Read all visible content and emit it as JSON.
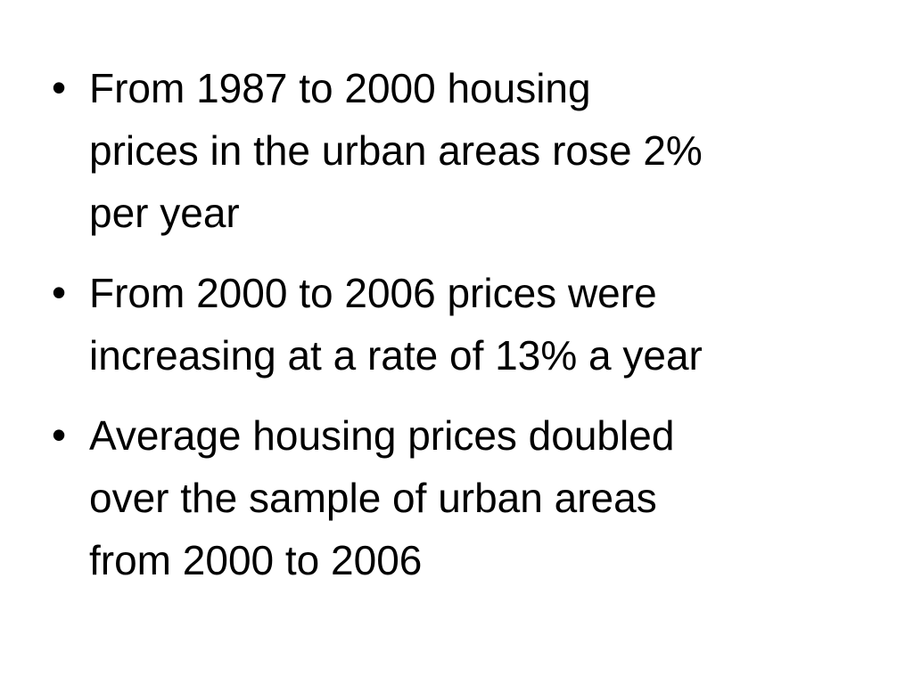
{
  "slide": {
    "bullets": [
      {
        "marker": "•",
        "lines": [
          "From 1987 to 2000 housing",
          "prices in the urban areas rose 2%",
          "per year"
        ]
      },
      {
        "marker": "•",
        "lines": [
          "From 2000 to 2006 prices were",
          "increasing at a rate of 13% a year"
        ]
      },
      {
        "marker": "•",
        "lines": [
          "Average housing prices doubled",
          "over the sample of urban areas",
          "from 2000 to 2006"
        ]
      }
    ]
  }
}
